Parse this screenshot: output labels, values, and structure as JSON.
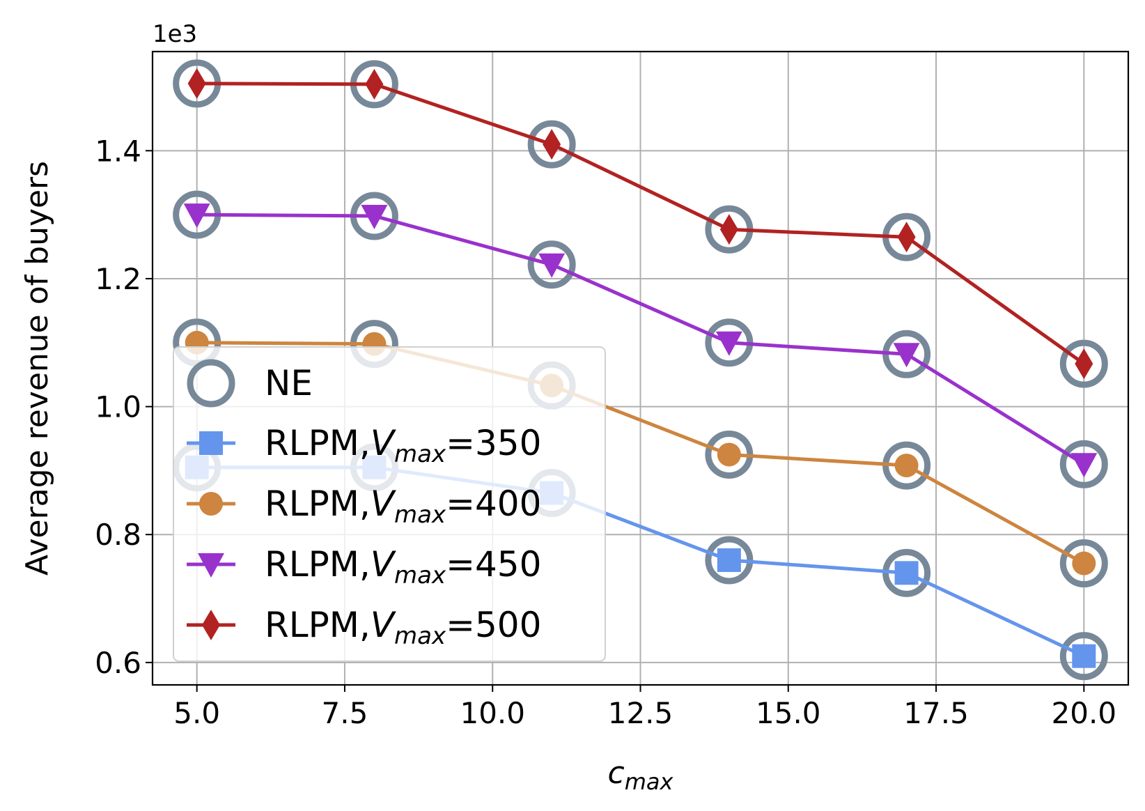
{
  "chart_data": {
    "type": "line",
    "x": [
      5,
      8,
      11,
      14,
      17,
      20
    ],
    "series": [
      {
        "name": "NE",
        "marker": "open-circle",
        "color": "#778899",
        "groups": [
          [
            905,
            905,
            865,
            760,
            740,
            610
          ],
          [
            1100,
            1098,
            1033,
            925,
            908,
            755
          ],
          [
            1300,
            1298,
            1222,
            1100,
            1082,
            910
          ],
          [
            1505,
            1504,
            1410,
            1277,
            1265,
            1067
          ]
        ]
      },
      {
        "name": "RLPM,V_max=350",
        "label_main": "RLPM,",
        "label_var": "V",
        "label_sub": "max",
        "label_value": "=350",
        "marker": "square",
        "color": "#6495ED",
        "values": [
          905,
          905,
          865,
          760,
          740,
          610
        ]
      },
      {
        "name": "RLPM,V_max=400",
        "label_main": "RLPM,",
        "label_var": "V",
        "label_sub": "max",
        "label_value": "=400",
        "marker": "circle",
        "color": "#CD853F",
        "values": [
          1100,
          1098,
          1033,
          925,
          908,
          755
        ]
      },
      {
        "name": "RLPM,V_max=450",
        "label_main": "RLPM,",
        "label_var": "V",
        "label_sub": "max",
        "label_value": "=450",
        "marker": "triangle-down",
        "color": "#9932CC",
        "values": [
          1300,
          1298,
          1222,
          1100,
          1082,
          910
        ]
      },
      {
        "name": "RLPM,V_max=500",
        "label_main": "RLPM,",
        "label_var": "V",
        "label_sub": "max",
        "label_value": "=500",
        "marker": "thin-diamond",
        "color": "#B22222",
        "values": [
          1505,
          1504,
          1410,
          1277,
          1265,
          1067
        ]
      }
    ],
    "xlabel_var": "c",
    "xlabel_sub": "max",
    "ylabel": "Average revenue of buyers",
    "y_offset_text": "1e3",
    "xlim": [
      4.25,
      20.75
    ],
    "ylim": [
      565,
      1555
    ],
    "xticks": [
      5,
      7.5,
      10,
      12.5,
      15,
      17.5,
      20
    ],
    "xtick_labels": [
      "5.0",
      "7.5",
      "10.0",
      "12.5",
      "15.0",
      "17.5",
      "20.0"
    ],
    "yticks": [
      600,
      800,
      1000,
      1200,
      1400
    ],
    "ytick_labels": [
      "0.6",
      "0.8",
      "1.0",
      "1.2",
      "1.4"
    ],
    "grid": true,
    "legend_position": "lower-left"
  }
}
